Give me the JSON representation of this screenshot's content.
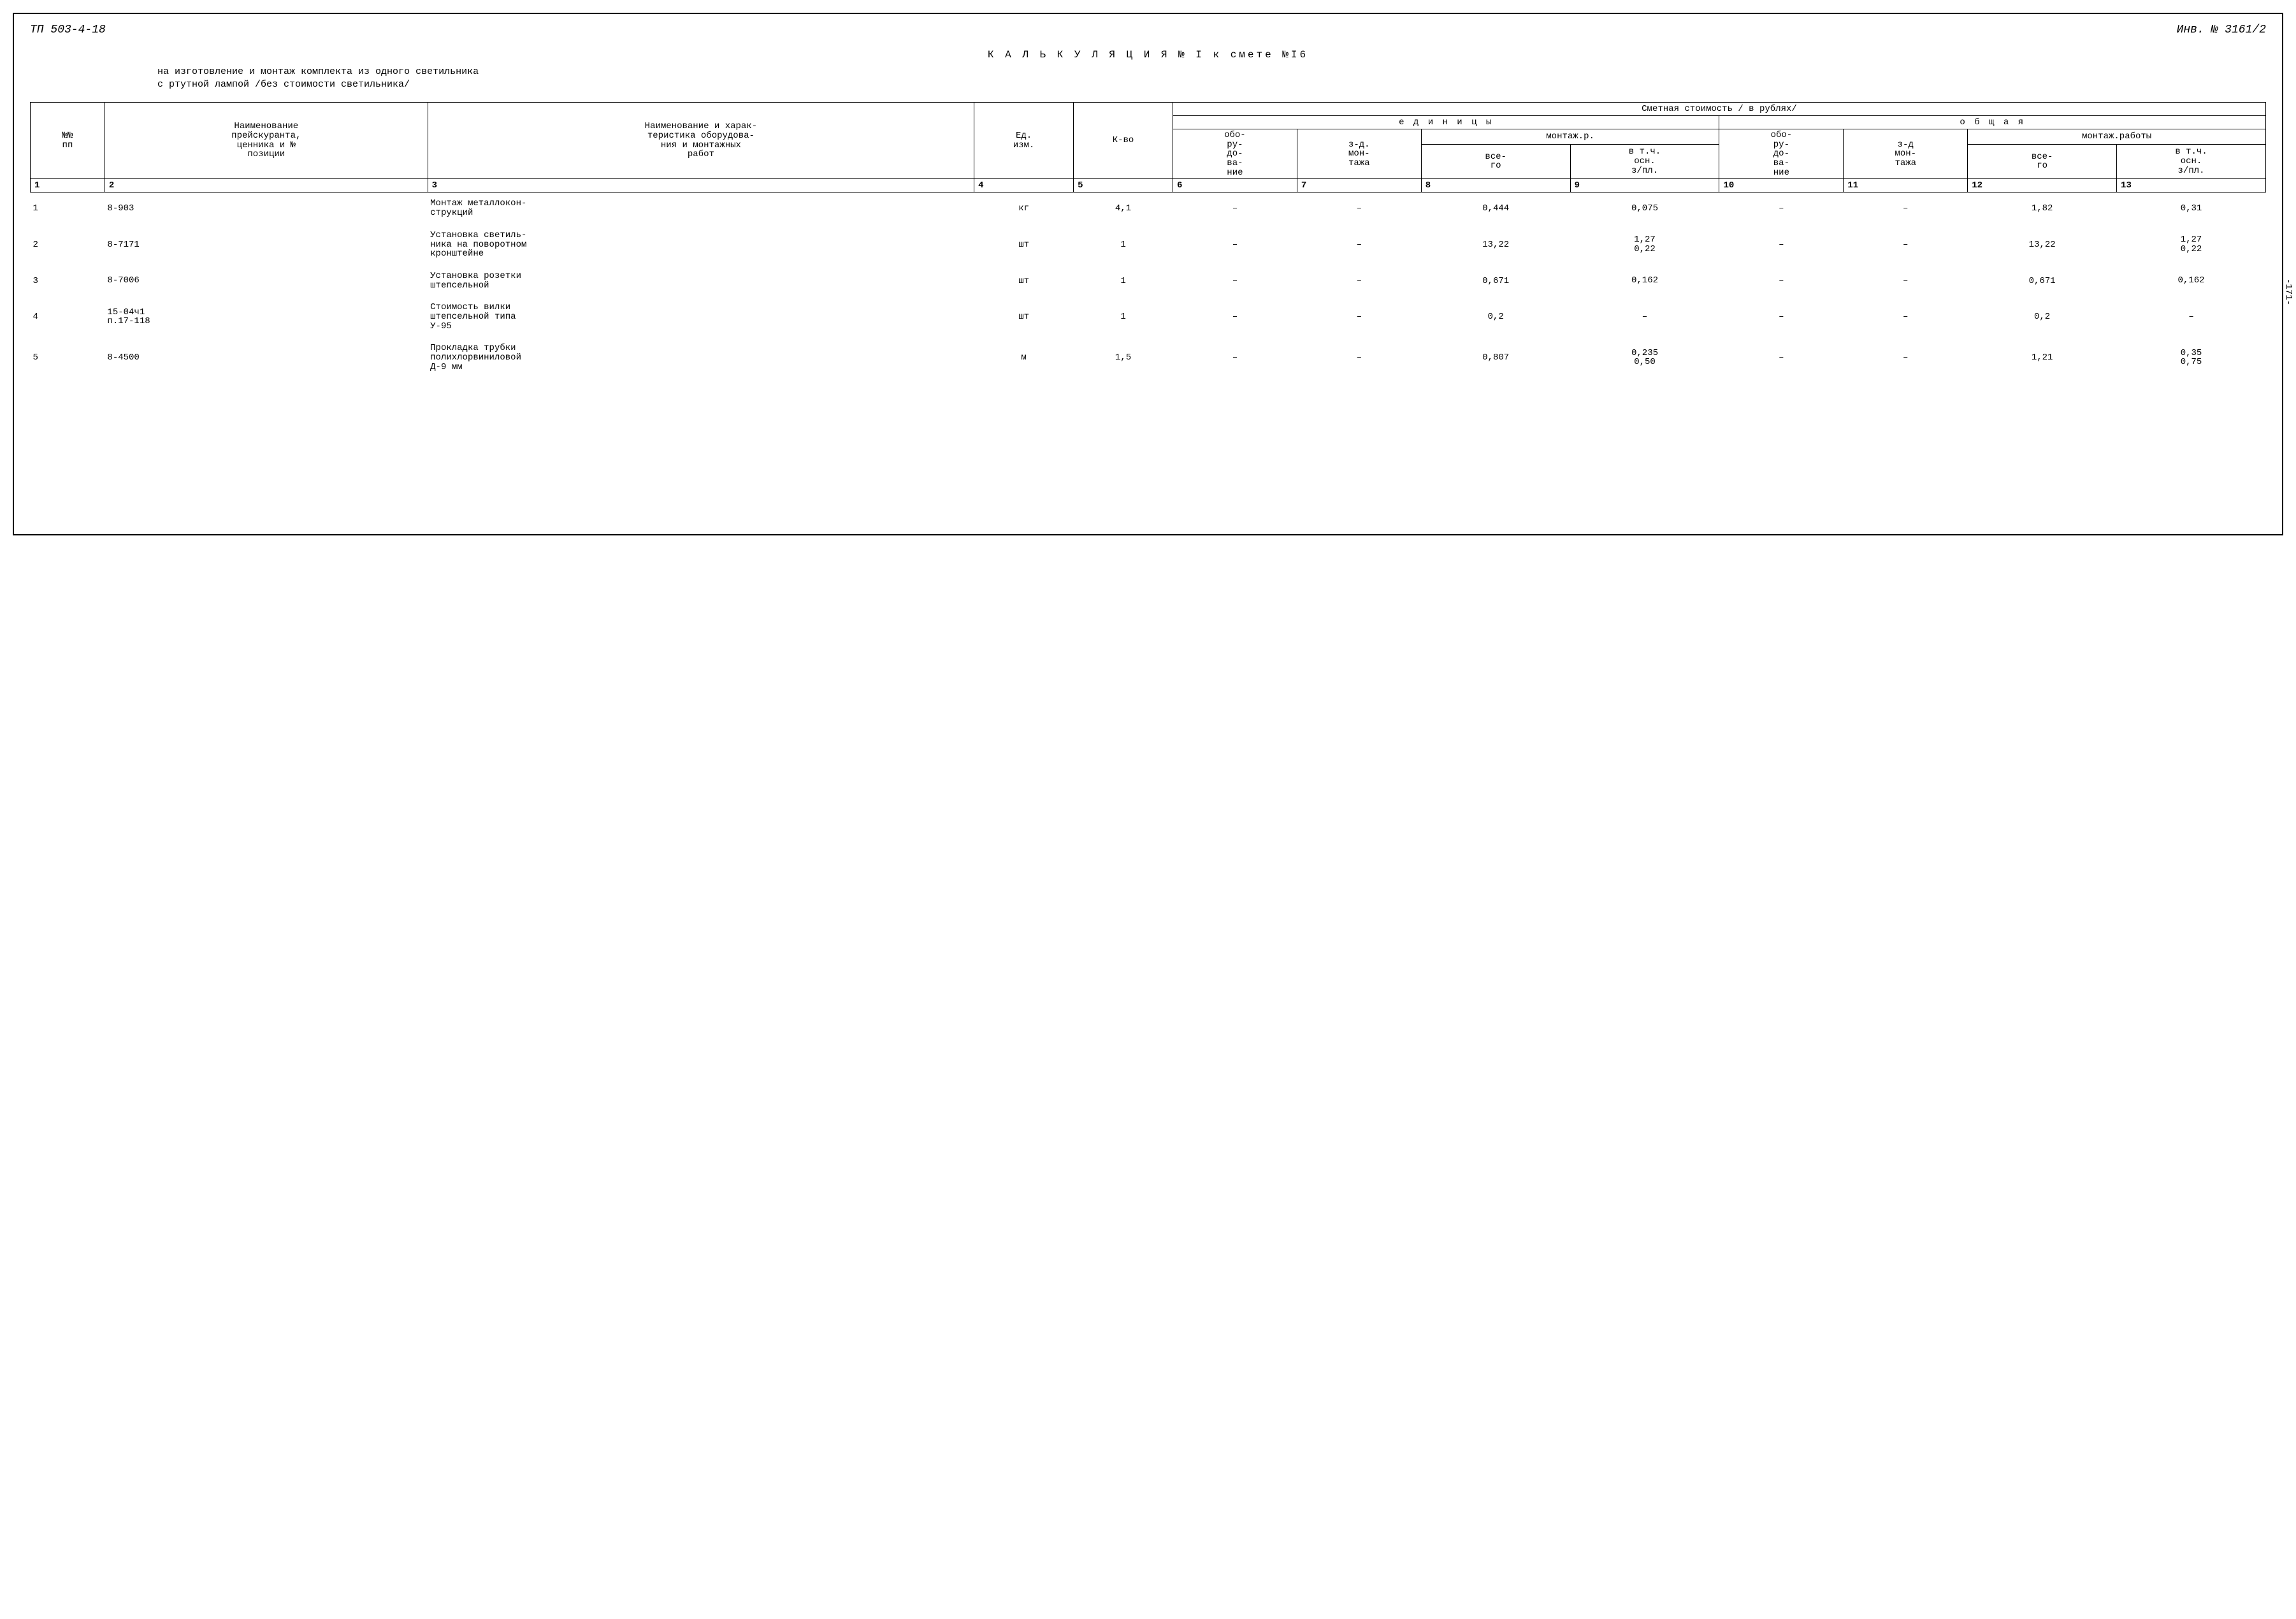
{
  "header": {
    "doc_code": "ТП 503-4-18",
    "inv_number": "Инв. № 3161/2"
  },
  "title_line": "К А Л Ь К У Л Я Ц И Я   № I к смете №I6",
  "subtitle_line1": "на изготовление и монтаж  комплекта из одного светильника",
  "subtitle_line2": "с ртутной лампой /без стоимости светильника/",
  "columns": {
    "c1": "№№\nпп",
    "c2": "Наименование\nпрейскуранта,\nценника и №\nпозиции",
    "c3": "Наименование и харак-\nтеристика оборудова-\nния и монтажных\nработ",
    "c4": "Ед.\nизм.",
    "c5": "К-во",
    "group_top": "Сметная стоимость / в рублях/",
    "unit": "е д и н и ц ы",
    "total": "о б щ а я",
    "c6": "обо-\nру-\nдо-\nва-\nние",
    "c7": "з-д.\nмон-\nтажа",
    "mont": "монтаж.р.",
    "mont_total": "монтаж.работы",
    "c8": "все-\nго",
    "c9": "в т.ч.\nосн.\nз/пл.",
    "c10": "обо-\nру-\nдо-\nва-\nние",
    "c11": "з-д\nмон-\nтажа",
    "c12": "все-\nго",
    "c13": "в т.ч.\nосн.\nз/пл."
  },
  "colnums": [
    "1",
    "2",
    "3",
    "4",
    "5",
    "6",
    "7",
    "8",
    "9",
    "10",
    "11",
    "12",
    "13"
  ],
  "rows": [
    {
      "n": "1",
      "ref": "8-903",
      "desc": "Монтаж металлокон-\nструкций",
      "unit": "кг",
      "qty": "4,1",
      "c6": "–",
      "c7": "–",
      "c8": "0,444",
      "c9": "0,075",
      "c10": "–",
      "c11": "–",
      "c12": "1,82",
      "c13": "0,31"
    },
    {
      "n": "2",
      "ref": "8-7171",
      "desc": "Установка светиль-\nника на поворотном\nкронштейне",
      "unit": "шт",
      "qty": "1",
      "c6": "–",
      "c7": "–",
      "c8": "13,22",
      "c9": "1,27\n0,22",
      "c10": "–",
      "c11": "–",
      "c12": "13,22",
      "c13": "1,27\n0,22"
    },
    {
      "n": "3",
      "ref": "8-7006",
      "desc": "Установка розетки\nштепсельной",
      "unit": "шт",
      "qty": "1",
      "c6": "–",
      "c7": "–",
      "c8": "0,671",
      "c9": "0,162",
      "c10": "–",
      "c11": "–",
      "c12": "0,671",
      "c13": "0,162"
    },
    {
      "n": "4",
      "ref": "15-04ч1\nп.17-118",
      "desc": "Стоимость вилки\nштепсельной типа\nУ-95",
      "unit": "шт",
      "qty": "1",
      "c6": "–",
      "c7": "–",
      "c8": "0,2",
      "c9": "–",
      "c10": "–",
      "c11": "–",
      "c12": "0,2",
      "c13": "–"
    },
    {
      "n": "5",
      "ref": "8-4500",
      "desc": "Прокладка трубки\nполихлорвиниловой\nД-9 мм",
      "unit": "м",
      "qty": "1,5",
      "c6": "–",
      "c7": "–",
      "c8": "0,807",
      "c9": "0,235\n0,50",
      "c10": "–",
      "c11": "–",
      "c12": "1,21",
      "c13": "0,35\n0,75"
    }
  ],
  "side_page": "-171-",
  "style": {
    "border_color": "#000000",
    "font_family": "Courier New",
    "font_size_body": 14,
    "font_size_title": 16
  }
}
